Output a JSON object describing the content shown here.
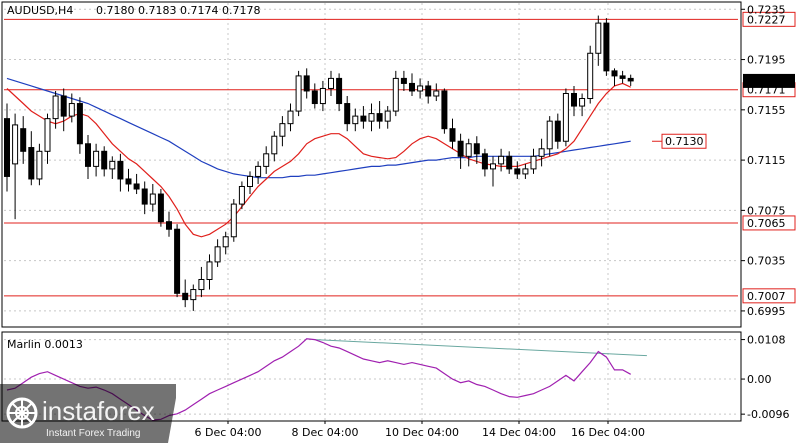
{
  "header": {
    "symbol": "AUDUSD,H4",
    "ohlc": "0.7180 0.7183 0.7174 0.7178"
  },
  "watermark": {
    "brand": "instaforex",
    "tagline": "Instant Forex Trading"
  },
  "colors": {
    "background": "#ffffff",
    "grid": "#c8c8c8",
    "candle": "#000000",
    "ma_fast": "#e0201c",
    "ma_slow": "#1f3fbf",
    "levels": "#e0201c",
    "oscillator": "#a020b0",
    "divergence": "#6aa8a0"
  },
  "chart_data": [
    {
      "type": "candlestick",
      "title": "AUDUSD,H4",
      "x_ticks": [
        "6 Dec 04:00",
        "8 Dec 04:00",
        "10 Dec 04:00",
        "14 Dec 04:00",
        "16 Dec 04:00"
      ],
      "y_ticks": [
        "0.7235",
        "0.7195",
        "0.7155",
        "0.7115",
        "0.7075",
        "0.7035",
        "0.6995"
      ],
      "ylim": [
        0.6983,
        0.724
      ],
      "grid": true,
      "current_price": "0.7178",
      "levels": [
        {
          "label": "0.7227",
          "value": 0.7227
        },
        {
          "label": "0.7171",
          "value": 0.7171
        },
        {
          "label": "0.7065",
          "value": 0.7065
        },
        {
          "label": "0.7007",
          "value": 0.7007
        }
      ],
      "level_note": {
        "label": "0.7130",
        "value": 0.713
      },
      "candles": [
        [
          0.7148,
          0.716,
          0.709,
          0.7102
        ],
        [
          0.7112,
          0.7152,
          0.7068,
          0.7143
        ],
        [
          0.714,
          0.715,
          0.7112,
          0.7122
        ],
        [
          0.7125,
          0.7138,
          0.7095,
          0.71
        ],
        [
          0.71,
          0.7128,
          0.7095,
          0.7122
        ],
        [
          0.7122,
          0.7152,
          0.7112,
          0.7148
        ],
        [
          0.7148,
          0.717,
          0.714,
          0.7166
        ],
        [
          0.7166,
          0.7172,
          0.7138,
          0.715
        ],
        [
          0.715,
          0.7168,
          0.7145,
          0.716
        ],
        [
          0.716,
          0.7165,
          0.712,
          0.7128
        ],
        [
          0.7128,
          0.7135,
          0.71,
          0.711
        ],
        [
          0.711,
          0.7128,
          0.7102,
          0.7122
        ],
        [
          0.7122,
          0.7126,
          0.7102,
          0.7108
        ],
        [
          0.7108,
          0.7118,
          0.71,
          0.7114
        ],
        [
          0.7114,
          0.712,
          0.709,
          0.71
        ],
        [
          0.71,
          0.7108,
          0.709,
          0.7096
        ],
        [
          0.7096,
          0.7104,
          0.7088,
          0.7092
        ],
        [
          0.7092,
          0.7098,
          0.7072,
          0.708
        ],
        [
          0.708,
          0.7096,
          0.7074,
          0.7088
        ],
        [
          0.7088,
          0.7092,
          0.7062,
          0.7066
        ],
        [
          0.7066,
          0.7074,
          0.7054,
          0.706
        ],
        [
          0.706,
          0.7064,
          0.7006,
          0.7009
        ],
        [
          0.7009,
          0.702,
          0.6998,
          0.7004
        ],
        [
          0.7004,
          0.7016,
          0.6995,
          0.7012
        ],
        [
          0.7012,
          0.703,
          0.7006,
          0.702
        ],
        [
          0.702,
          0.704,
          0.7012,
          0.7034
        ],
        [
          0.7034,
          0.7052,
          0.703,
          0.7046
        ],
        [
          0.7046,
          0.7058,
          0.704,
          0.7054
        ],
        [
          0.7054,
          0.7084,
          0.705,
          0.708
        ],
        [
          0.708,
          0.7098,
          0.7076,
          0.7094
        ],
        [
          0.7094,
          0.7106,
          0.7088,
          0.7102
        ],
        [
          0.7102,
          0.7114,
          0.7096,
          0.711
        ],
        [
          0.711,
          0.7126,
          0.7104,
          0.712
        ],
        [
          0.712,
          0.7138,
          0.7114,
          0.7134
        ],
        [
          0.7134,
          0.715,
          0.7126,
          0.7144
        ],
        [
          0.7144,
          0.716,
          0.7138,
          0.7154
        ],
        [
          0.7154,
          0.7186,
          0.715,
          0.7182
        ],
        [
          0.7182,
          0.7188,
          0.7164,
          0.717
        ],
        [
          0.717,
          0.7176,
          0.7156,
          0.716
        ],
        [
          0.716,
          0.7178,
          0.7154,
          0.7172
        ],
        [
          0.7172,
          0.7186,
          0.7166,
          0.718
        ],
        [
          0.718,
          0.7184,
          0.7154,
          0.716
        ],
        [
          0.716,
          0.7166,
          0.7138,
          0.7144
        ],
        [
          0.7144,
          0.7156,
          0.7138,
          0.715
        ],
        [
          0.715,
          0.7158,
          0.714,
          0.7146
        ],
        [
          0.7146,
          0.716,
          0.7138,
          0.7152
        ],
        [
          0.7152,
          0.7162,
          0.714,
          0.7146
        ],
        [
          0.7146,
          0.7158,
          0.714,
          0.7154
        ],
        [
          0.7154,
          0.7186,
          0.715,
          0.718
        ],
        [
          0.718,
          0.7186,
          0.717,
          0.7176
        ],
        [
          0.7176,
          0.7184,
          0.7166,
          0.717
        ],
        [
          0.717,
          0.718,
          0.7164,
          0.7174
        ],
        [
          0.7174,
          0.7178,
          0.716,
          0.7166
        ],
        [
          0.7166,
          0.7176,
          0.7162,
          0.717
        ],
        [
          0.717,
          0.7172,
          0.7136,
          0.714
        ],
        [
          0.714,
          0.7148,
          0.7124,
          0.713
        ],
        [
          0.713,
          0.7136,
          0.7108,
          0.7118
        ],
        [
          0.7118,
          0.7132,
          0.711,
          0.7128
        ],
        [
          0.7128,
          0.7134,
          0.7112,
          0.712
        ],
        [
          0.712,
          0.7124,
          0.7102,
          0.7108
        ],
        [
          0.7108,
          0.7118,
          0.7094,
          0.7112
        ],
        [
          0.7112,
          0.7124,
          0.7106,
          0.7118
        ],
        [
          0.7118,
          0.7122,
          0.7104,
          0.7108
        ],
        [
          0.7108,
          0.7114,
          0.71,
          0.7104
        ],
        [
          0.7104,
          0.7112,
          0.71,
          0.7108
        ],
        [
          0.7108,
          0.7124,
          0.7104,
          0.7118
        ],
        [
          0.7118,
          0.7132,
          0.711,
          0.7124
        ],
        [
          0.7124,
          0.715,
          0.7118,
          0.7146
        ],
        [
          0.7146,
          0.7152,
          0.7124,
          0.713
        ],
        [
          0.713,
          0.7172,
          0.7126,
          0.7168
        ],
        [
          0.7168,
          0.7174,
          0.715,
          0.7158
        ],
        [
          0.7158,
          0.7168,
          0.715,
          0.7164
        ],
        [
          0.7164,
          0.7206,
          0.716,
          0.72
        ],
        [
          0.72,
          0.723,
          0.719,
          0.7224
        ],
        [
          0.7224,
          0.7228,
          0.7182,
          0.7186
        ],
        [
          0.7186,
          0.7188,
          0.7174,
          0.7182
        ],
        [
          0.7182,
          0.7186,
          0.7176,
          0.718
        ],
        [
          0.718,
          0.7183,
          0.7174,
          0.7178
        ]
      ],
      "ma_fast": [
        0.7172,
        0.7166,
        0.716,
        0.7154,
        0.715,
        0.7146,
        0.7144,
        0.7146,
        0.715,
        0.7152,
        0.715,
        0.7144,
        0.7136,
        0.7128,
        0.7122,
        0.7116,
        0.7112,
        0.7106,
        0.71,
        0.7094,
        0.7086,
        0.7076,
        0.7064,
        0.7056,
        0.7054,
        0.7056,
        0.706,
        0.7064,
        0.707,
        0.7078,
        0.7086,
        0.7094,
        0.71,
        0.7106,
        0.711,
        0.7114,
        0.712,
        0.7128,
        0.7132,
        0.7134,
        0.7136,
        0.7136,
        0.7132,
        0.7126,
        0.712,
        0.7118,
        0.7117,
        0.7116,
        0.7117,
        0.7122,
        0.7128,
        0.7132,
        0.7134,
        0.7132,
        0.7128,
        0.7124,
        0.712,
        0.7116,
        0.7114,
        0.7112,
        0.7111,
        0.711,
        0.711,
        0.711,
        0.7112,
        0.7114,
        0.7116,
        0.7118,
        0.712,
        0.7124,
        0.713,
        0.714,
        0.715,
        0.716,
        0.7168,
        0.7174,
        0.7176,
        0.7173
      ],
      "ma_slow": [
        0.718,
        0.7178,
        0.7176,
        0.7174,
        0.7172,
        0.717,
        0.7168,
        0.7166,
        0.7164,
        0.7162,
        0.716,
        0.7157,
        0.7154,
        0.7151,
        0.7148,
        0.7145,
        0.7142,
        0.7139,
        0.7136,
        0.7133,
        0.713,
        0.7126,
        0.7122,
        0.7118,
        0.7114,
        0.7111,
        0.7108,
        0.7106,
        0.7104,
        0.7103,
        0.7102,
        0.7101,
        0.7101,
        0.7101,
        0.7101,
        0.7102,
        0.7102,
        0.7103,
        0.7103,
        0.7104,
        0.7105,
        0.7106,
        0.7107,
        0.7108,
        0.7109,
        0.711,
        0.711,
        0.7111,
        0.7111,
        0.7112,
        0.7113,
        0.7114,
        0.7115,
        0.7115,
        0.7116,
        0.7117,
        0.7117,
        0.7117,
        0.7118,
        0.7118,
        0.7118,
        0.7118,
        0.7118,
        0.7118,
        0.7118,
        0.7118,
        0.7119,
        0.712,
        0.7121,
        0.7122,
        0.7123,
        0.7124,
        0.7125,
        0.7126,
        0.7127,
        0.7128,
        0.7129,
        0.713
      ]
    },
    {
      "type": "line",
      "name": "Marlin",
      "title": "Marlin 0.0013",
      "x_ticks": [
        "6 Dec 04:00",
        "8 Dec 04:00",
        "10 Dec 04:00",
        "14 Dec 04:00",
        "16 Dec 04:00"
      ],
      "y_ticks": [
        "0.0108",
        "0.00",
        "-0.0096"
      ],
      "ylim": [
        -0.0112,
        0.0126
      ],
      "values": [
        -0.003,
        -0.0025,
        -0.001,
        0.0005,
        0.0015,
        0.002,
        0.001,
        0.0,
        -0.001,
        -0.002,
        -0.0025,
        -0.0022,
        -0.003,
        -0.004,
        -0.0055,
        -0.007,
        -0.0085,
        -0.01,
        -0.0112,
        -0.011,
        -0.01,
        -0.0095,
        -0.0085,
        -0.007,
        -0.0055,
        -0.004,
        -0.003,
        -0.002,
        -0.001,
        0.0,
        0.001,
        0.002,
        0.0035,
        0.005,
        0.006,
        0.0075,
        0.009,
        0.011,
        0.0108,
        0.01,
        0.009,
        0.0085,
        0.0075,
        0.0065,
        0.0055,
        0.005,
        0.0045,
        0.005,
        0.0045,
        0.004,
        0.0045,
        0.004,
        0.0035,
        0.003,
        0.0015,
        0.0,
        -0.001,
        -0.0005,
        -0.0015,
        -0.002,
        -0.003,
        -0.004,
        -0.0048,
        -0.005,
        -0.0045,
        -0.004,
        -0.003,
        -0.002,
        -0.0005,
        0.001,
        -0.0005,
        0.002,
        0.0045,
        0.0075,
        0.006,
        0.0025,
        0.0025,
        0.0013
      ],
      "divergence_line": {
        "from": [
          38,
          0.0108
        ],
        "to": [
          79,
          0.0064
        ]
      }
    }
  ]
}
